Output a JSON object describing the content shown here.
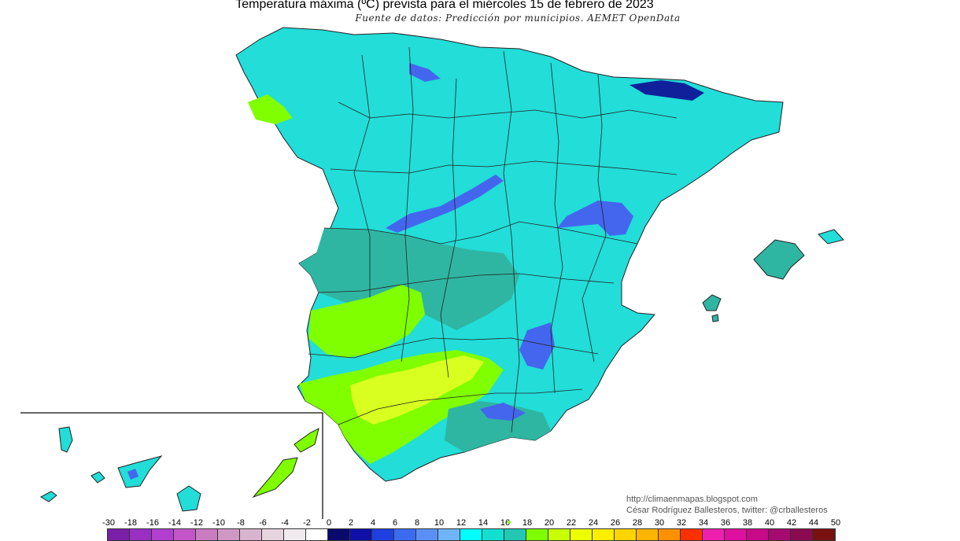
{
  "title": "Temperatura máxima (ºC) prevista para el miércoles 15 de febrero de 2023",
  "subtitle": "Fuente de datos: Predicción por municipios. AEMET OpenData",
  "credits": {
    "line1": "http://climaenmapas.blogspot.com",
    "line2": "César Rodríguez Ballesteros, twitter: @crballesteros"
  },
  "legend": {
    "labels": [
      "-30",
      "-18",
      "-16",
      "-14",
      "-12",
      "-10",
      "-8",
      "-6",
      "-4",
      "-2",
      "0",
      "2",
      "4",
      "6",
      "8",
      "10",
      "12",
      "14",
      "16",
      "18",
      "20",
      "22",
      "24",
      "26",
      "28",
      "30",
      "32",
      "34",
      "36",
      "38",
      "40",
      "42",
      "44",
      "50"
    ],
    "colors": [
      "#7a1fa8",
      "#9a2fc4",
      "#b23fd0",
      "#c455c8",
      "#c97cc0",
      "#cf98c4",
      "#d9b4cf",
      "#e6d4df",
      "#f0eaee",
      "#ffffff",
      "#0a0a6e",
      "#1010a8",
      "#1f3fe0",
      "#3b6cf0",
      "#5a90f5",
      "#6fb4f8",
      "#00ffff",
      "#11e0d0",
      "#22c8b4",
      "#7fff00",
      "#c8ff00",
      "#eeff00",
      "#ffee00",
      "#ffd400",
      "#ffb400",
      "#ff9000",
      "#ff3000",
      "#ee20b0",
      "#dd10a0",
      "#c80a88",
      "#a40a70",
      "#8a0a50",
      "#7a1010"
    ]
  },
  "palette": {
    "cyan": "#22ddd8",
    "teal": "#2fb6a2",
    "green": "#7fff00",
    "yellow": "#d8ff20",
    "blue": "#4466ee",
    "navy": "#10209a",
    "border": "#222222"
  }
}
